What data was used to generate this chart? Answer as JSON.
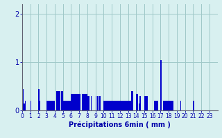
{
  "xlabel": "Précipitations 6min ( mm )",
  "background_color": "#d8f0f0",
  "bar_color": "#0000cc",
  "grid_color": "#a0c8c8",
  "axis_color": "#606070",
  "text_color": "#0000aa",
  "ylim": [
    0,
    2.2
  ],
  "yticks": [
    0,
    1,
    2
  ],
  "hour_labels": [
    "0",
    "1",
    "2",
    "3",
    "4",
    "5",
    "6",
    "7",
    "8",
    "9",
    "10",
    "11",
    "12",
    "13",
    "14",
    "15",
    "16",
    "17",
    "18",
    "19",
    "20",
    "21",
    "22",
    "23"
  ],
  "vals": [
    0.0,
    0.45,
    0.15,
    0.2,
    0.0,
    0.0,
    0.0,
    0.0,
    0.0,
    0.0,
    0.2,
    0.0,
    0.0,
    0.0,
    0.0,
    0.0,
    0.0,
    0.0,
    0.0,
    0.0,
    0.45,
    0.2,
    0.0,
    0.0,
    0.0,
    0.0,
    0.0,
    0.0,
    0.0,
    0.0,
    0.2,
    0.2,
    0.2,
    0.2,
    0.2,
    0.2,
    0.2,
    0.2,
    0.2,
    0.2,
    0.0,
    0.0,
    0.4,
    0.4,
    0.4,
    0.4,
    0.4,
    0.0,
    0.4,
    0.4,
    0.2,
    0.2,
    0.2,
    0.2,
    0.2,
    0.2,
    0.2,
    0.2,
    0.2,
    0.2,
    0.35,
    0.35,
    0.35,
    0.35,
    0.35,
    0.35,
    0.35,
    0.35,
    0.35,
    0.35,
    0.35,
    0.35,
    0.0,
    0.35,
    0.35,
    0.35,
    0.35,
    0.35,
    0.35,
    0.35,
    0.3,
    0.3,
    0.3,
    0.0,
    0.3,
    0.0,
    0.0,
    0.0,
    0.0,
    0.0,
    0.3,
    0.0,
    0.3,
    0.3,
    0.0,
    0.3,
    0.0,
    0.0,
    0.0,
    0.0,
    0.2,
    0.2,
    0.2,
    0.2,
    0.2,
    0.2,
    0.2,
    0.2,
    0.2,
    0.2,
    0.2,
    0.2,
    0.2,
    0.2,
    0.2,
    0.2,
    0.2,
    0.2,
    0.2,
    0.2,
    0.2,
    0.2,
    0.2,
    0.2,
    0.2,
    0.2,
    0.2,
    0.2,
    0.2,
    0.2,
    0.2,
    0.2,
    0.2,
    0.2,
    0.4,
    0.4,
    0.0,
    0.0,
    0.0,
    0.0,
    0.35,
    0.35,
    0.0,
    0.15,
    0.3,
    0.3,
    0.0,
    0.0,
    0.0,
    0.0,
    0.3,
    0.3,
    0.3,
    0.3,
    0.0,
    0.0,
    0.0,
    0.0,
    0.0,
    0.0,
    0.0,
    0.0,
    0.2,
    0.2,
    0.2,
    0.2,
    0.2,
    0.0,
    0.0,
    0.0,
    1.05,
    0.0,
    0.0,
    0.2,
    0.2,
    0.2,
    0.2,
    0.2,
    0.2,
    0.2,
    0.2,
    0.2,
    0.2,
    0.2,
    0.2,
    0.2,
    0.0,
    0.0,
    0.0,
    0.0,
    0.0,
    0.0,
    0.0,
    0.0,
    0.2,
    0.0,
    0.0,
    0.0,
    0.0,
    0.0,
    0.0,
    0.0,
    0.0,
    0.0,
    0.0,
    0.0,
    0.0,
    0.0,
    0.0,
    0.0,
    0.2,
    0.0,
    0.0,
    0.0,
    0.0,
    0.0,
    0.0,
    0.0,
    0.0,
    0.0,
    0.0,
    0.0,
    0.0,
    0.0,
    0.0,
    0.0,
    0.0,
    0.0,
    0.0,
    0.0,
    0.0,
    0.0,
    0.0,
    0.0,
    0.0,
    0.0,
    0.0,
    0.0,
    0.0,
    0.0
  ]
}
